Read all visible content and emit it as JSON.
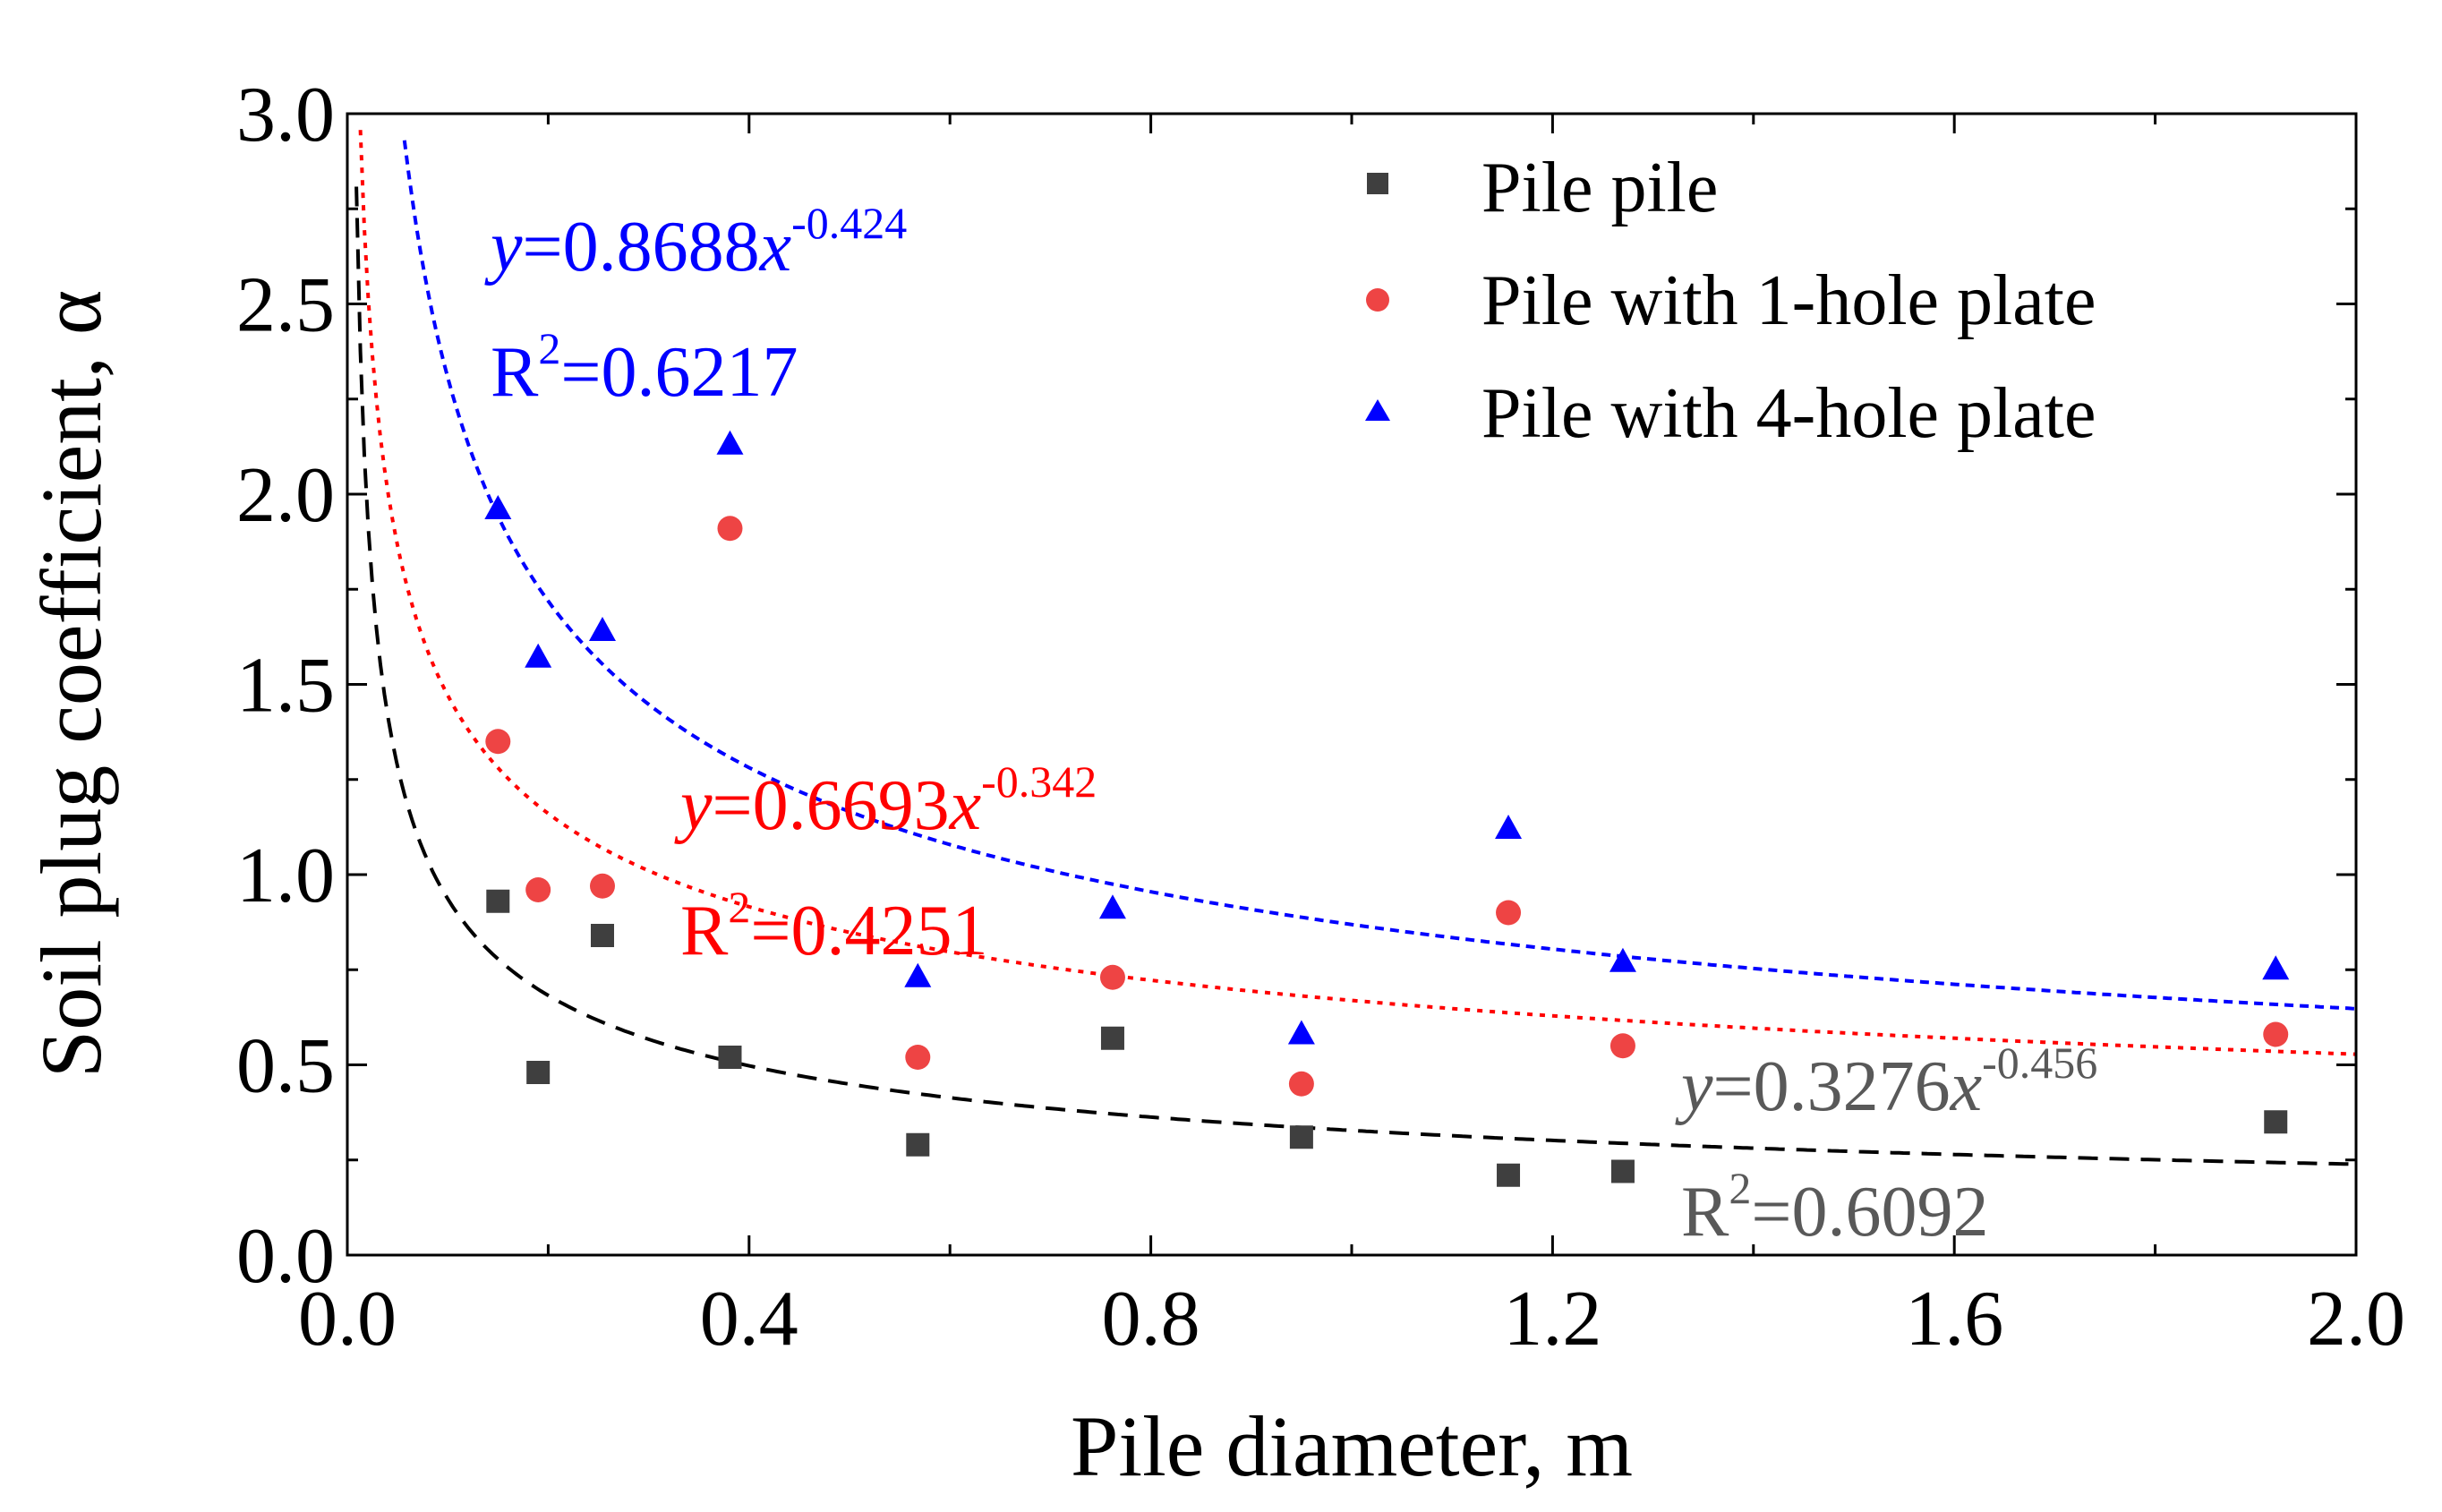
{
  "chart_data": {
    "type": "scatter",
    "xlabel": "Pile diameter, m",
    "ylabel": "Soil plug coefficient, α",
    "xlim": [
      0,
      2.0
    ],
    "ylim": [
      0,
      3.0
    ],
    "xticks": [
      "0.0",
      "0.4",
      "0.8",
      "1.2",
      "1.6",
      "2.0"
    ],
    "yticks": [
      "0.0",
      "0.5",
      "1.0",
      "1.5",
      "2.0",
      "2.5",
      "3.0"
    ],
    "grid": false,
    "legend_position": "top-right",
    "series": [
      {
        "name": "Pile pile",
        "marker": "square",
        "color": "#3f3f3f",
        "trend_color": "#000000",
        "x": [
          0.15,
          0.19,
          0.254,
          0.381,
          0.568,
          0.762,
          0.95,
          1.156,
          1.27,
          1.92
        ],
        "y": [
          0.93,
          0.48,
          0.84,
          0.52,
          0.29,
          0.57,
          0.31,
          0.21,
          0.22,
          0.35
        ],
        "trend": {
          "a": 0.3276,
          "b": -0.456
        },
        "equation": {
          "y": "y",
          "coef": "=0.3276",
          "x": "x",
          "exp": "-0.456"
        },
        "r2": {
          "base": "R",
          "sup": "2",
          "value": "=0.6092"
        },
        "annotation_color": "#595959"
      },
      {
        "name": "Pile with 1-hole plate",
        "marker": "circle",
        "color": "#ee4444",
        "trend_color": "#ff0000",
        "x": [
          0.15,
          0.19,
          0.254,
          0.381,
          0.568,
          0.762,
          0.95,
          1.156,
          1.27,
          1.92
        ],
        "y": [
          1.35,
          0.96,
          0.97,
          1.91,
          0.52,
          0.73,
          0.45,
          0.9,
          0.55,
          0.58
        ],
        "trend": {
          "a": 0.6693,
          "b": -0.342
        },
        "equation": {
          "y": "y",
          "coef": "=0.6693",
          "x": "x",
          "exp": "-0.342"
        },
        "r2": {
          "base": "R",
          "sup": "2",
          "value": "=0.4251"
        },
        "annotation_color": "#ff0000"
      },
      {
        "name": "Pile with 4-hole plate",
        "marker": "triangle",
        "color": "#0000ff",
        "trend_color": "#0000ff",
        "x": [
          0.15,
          0.19,
          0.254,
          0.381,
          0.568,
          0.762,
          0.95,
          1.156,
          1.27,
          1.92
        ],
        "y": [
          1.96,
          1.57,
          1.64,
          2.13,
          0.73,
          0.91,
          0.58,
          1.12,
          0.77,
          0.75
        ],
        "trend": {
          "a": 0.8688,
          "b": -0.424
        },
        "equation": {
          "y": "y",
          "coef": "=0.8688",
          "x": "x",
          "exp": "-0.424"
        },
        "r2": {
          "base": "R",
          "sup": "2",
          "value": "=0.6217"
        },
        "annotation_color": "#0000ff"
      }
    ]
  }
}
